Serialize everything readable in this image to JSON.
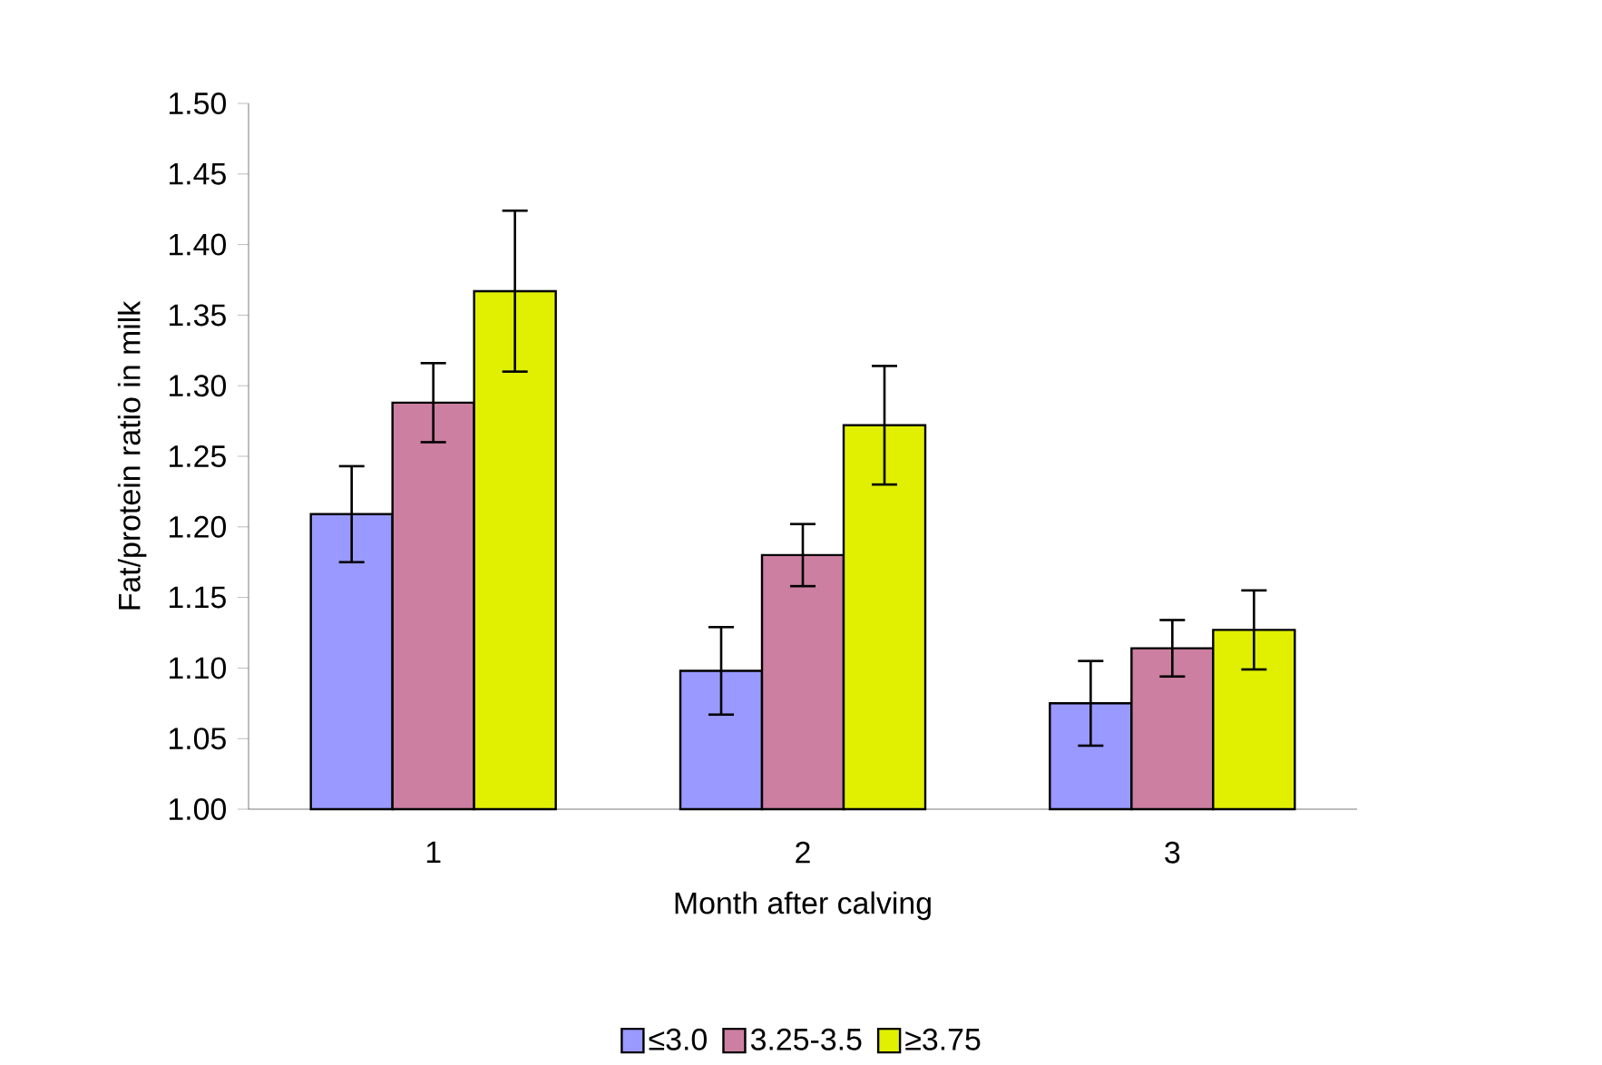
{
  "chart_data": {
    "type": "bar",
    "xlabel": "Month after calving",
    "ylabel": "Fat/protein ratio in milk",
    "categories": [
      "1",
      "2",
      "3"
    ],
    "series": [
      {
        "name": "≤3.0",
        "color": "#9999ff",
        "values": [
          1.209,
          1.098,
          1.075
        ],
        "errors": [
          0.034,
          0.031,
          0.03
        ]
      },
      {
        "name": "3.25-3.5",
        "color": "#cc7fa0",
        "values": [
          1.288,
          1.18,
          1.114
        ],
        "errors": [
          0.028,
          0.022,
          0.02
        ]
      },
      {
        "name": "≥3.75",
        "color": "#e0f000",
        "values": [
          1.367,
          1.272,
          1.127
        ],
        "errors": [
          0.057,
          0.042,
          0.028
        ]
      }
    ],
    "ylim": [
      1.0,
      1.5
    ],
    "yticks": [
      {
        "value": 1.0,
        "label": "1.00"
      },
      1.05,
      {
        "value": 1.1,
        "label": "1.10"
      },
      1.15,
      {
        "value": 1.2,
        "label": "1.20"
      },
      1.25,
      {
        "value": 1.3,
        "label": "1.30"
      },
      1.35,
      {
        "value": 1.4,
        "label": "1.40"
      },
      1.45,
      {
        "value": 1.5,
        "label": "1.50"
      }
    ],
    "legend": "bottom",
    "grid": false
  }
}
